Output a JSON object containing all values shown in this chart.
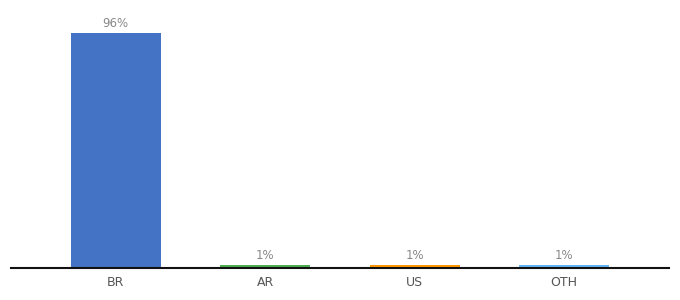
{
  "categories": [
    "BR",
    "AR",
    "US",
    "OTH"
  ],
  "values": [
    96,
    1,
    1,
    1
  ],
  "bar_colors": [
    "#4472c4",
    "#4caf50",
    "#ff9800",
    "#64b5f6"
  ],
  "labels": [
    "96%",
    "1%",
    "1%",
    "1%"
  ],
  "ylim": [
    0,
    105
  ],
  "background_color": "#ffffff",
  "label_fontsize": 8.5,
  "tick_fontsize": 9,
  "bar_width": 0.6
}
